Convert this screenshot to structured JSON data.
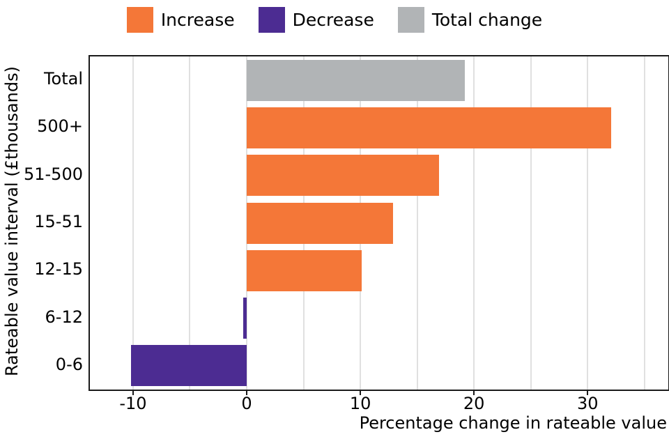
{
  "chart_data": {
    "type": "bar",
    "orientation": "horizontal",
    "xlabel": "Percentage change in rateable value",
    "ylabel": "Rateable value interval (£thousands)",
    "categories": [
      "Total",
      "500+",
      "51-500",
      "15-51",
      "12-15",
      "6-12",
      "0-6"
    ],
    "values": [
      19.2,
      32.1,
      16.9,
      12.9,
      10.1,
      -0.3,
      -10.2
    ],
    "bar_series": [
      "Total change",
      "Increase",
      "Increase",
      "Increase",
      "Increase",
      "Decrease",
      "Decrease"
    ],
    "bar_colors": [
      "#b1b4b6",
      "#f47738",
      "#f47738",
      "#f47738",
      "#f47738",
      "#4c2c92",
      "#4c2c92"
    ],
    "xlim": [
      -13.8,
      37.1
    ],
    "x_tick_values": [
      -10,
      0,
      10,
      20,
      30
    ],
    "x_tick_labels": [
      "-10",
      "0",
      "10",
      "20",
      "30"
    ],
    "x_gridline_values": [
      -10,
      -5,
      0,
      5,
      10,
      15,
      20,
      25,
      30,
      35
    ],
    "grid": true,
    "legend_position": "top-center",
    "legend": [
      {
        "label": "Increase",
        "color": "#f47738"
      },
      {
        "label": "Decrease",
        "color": "#4c2c92"
      },
      {
        "label": "Total change",
        "color": "#b1b4b6"
      }
    ]
  },
  "colors": {
    "increase": "#f47738",
    "decrease": "#4c2c92",
    "total_change": "#b1b4b6",
    "gridline": "#e0e0e0",
    "spine": "#1a1a1a",
    "text": "#000000",
    "background": "#ffffff"
  }
}
